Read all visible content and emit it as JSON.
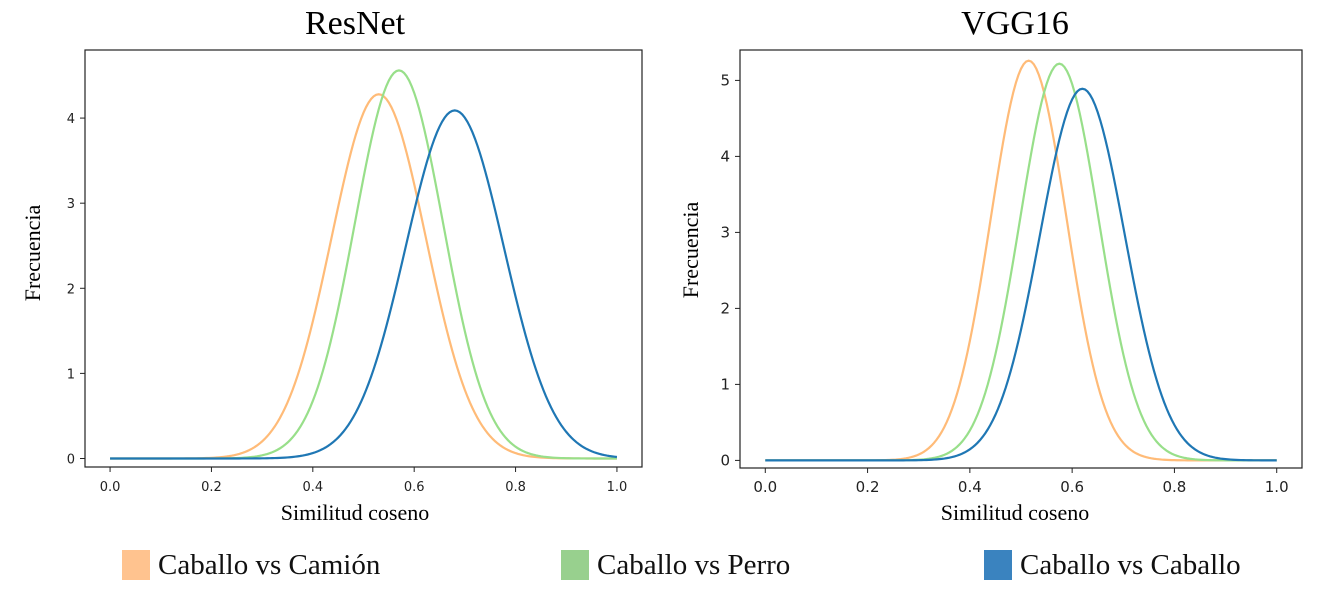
{
  "chart_data": [
    {
      "type": "line",
      "title": "ResNet",
      "xlabel": "Similitud coseno",
      "ylabel": "Frecuencia",
      "xlim": [
        0.0,
        1.0
      ],
      "ylim": [
        -0.1,
        4.8
      ],
      "x_ticks": [
        "0.0",
        "0.2",
        "0.4",
        "0.6",
        "0.8",
        "1.0"
      ],
      "y_ticks": [
        "0",
        "1",
        "2",
        "3",
        "4"
      ],
      "series": [
        {
          "name": "Caballo vs Camión",
          "color": "#ffbb78",
          "peak_x": 0.53,
          "peak_y": 4.28,
          "sigma": 0.093
        },
        {
          "name": "Caballo vs Perro",
          "color": "#98df8a",
          "peak_x": 0.57,
          "peak_y": 4.56,
          "sigma": 0.087
        },
        {
          "name": "Caballo vs Caballo",
          "color": "#1f77b4",
          "peak_x": 0.68,
          "peak_y": 4.09,
          "sigma": 0.097
        }
      ]
    },
    {
      "type": "line",
      "title": "VGG16",
      "xlabel": "Similitud coseno",
      "ylabel": "Frecuencia",
      "xlim": [
        0.0,
        1.0
      ],
      "ylim": [
        -0.1,
        5.4
      ],
      "x_ticks": [
        "0.0",
        "0.2",
        "0.4",
        "0.6",
        "0.8",
        "1.0"
      ],
      "y_ticks": [
        "0",
        "1",
        "2",
        "3",
        "4",
        "5"
      ],
      "series": [
        {
          "name": "Caballo vs Camión",
          "color": "#ffbb78",
          "peak_x": 0.515,
          "peak_y": 5.26,
          "sigma": 0.074
        },
        {
          "name": "Caballo vs Perro",
          "color": "#98df8a",
          "peak_x": 0.575,
          "peak_y": 5.22,
          "sigma": 0.077
        },
        {
          "name": "Caballo vs Caballo",
          "color": "#1f77b4",
          "peak_x": 0.62,
          "peak_y": 4.89,
          "sigma": 0.083
        }
      ]
    }
  ],
  "legend": {
    "items": [
      {
        "label": "Caballo vs Camión",
        "color": "#ffc38f"
      },
      {
        "label": "Caballo vs Perro",
        "color": "#98d08e"
      },
      {
        "label": "Caballo vs Caballo",
        "color": "#3a83bf"
      }
    ]
  }
}
